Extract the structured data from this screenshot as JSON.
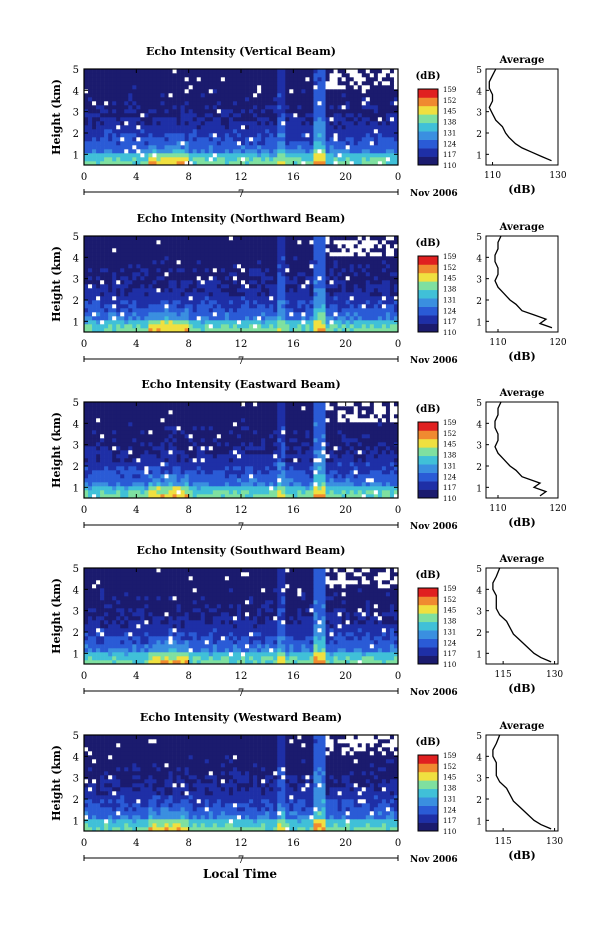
{
  "figure": {
    "xlabel": "Local Time",
    "date_label": "Nov 2006",
    "day_label": "7",
    "x_ticks": [
      "0",
      "4",
      "8",
      "12",
      "16",
      "20",
      "0"
    ],
    "y_ticks": [
      "1",
      "2",
      "3",
      "4",
      "5"
    ],
    "ylabel": "Height (km)"
  },
  "colorbar": {
    "unit_label": "(dB)",
    "labels": [
      "110",
      "117",
      "124",
      "131",
      "138",
      "145",
      "152",
      "159"
    ],
    "colors": [
      "#1b1b6e",
      "#1e2fa6",
      "#2a5bd6",
      "#3a8fe0",
      "#40c0d8",
      "#7fe0a0",
      "#f0e040",
      "#f08a30",
      "#e02020"
    ]
  },
  "chart_data": [
    {
      "type": "heatmap",
      "title": "Echo Intensity (Vertical Beam)",
      "xlabel": "Local Time",
      "ylabel": "Height (km)",
      "xlim": [
        0,
        24
      ],
      "ylim": [
        0.5,
        5
      ],
      "zlim": [
        110,
        159
      ],
      "zunit": "dB",
      "average_profile": {
        "title": "Average",
        "xlabel": "(dB)",
        "xticks": [
          "110",
          "130"
        ],
        "xlim": [
          108,
          130
        ],
        "yticks": [
          "1",
          "2",
          "3",
          "4",
          "5"
        ],
        "height_km": [
          0.7,
          0.9,
          1.1,
          1.3,
          1.5,
          1.8,
          2.0,
          2.3,
          2.6,
          2.9,
          3.2,
          3.5,
          3.8,
          4.1,
          4.4,
          4.7,
          5.0
        ],
        "value_db": [
          128,
          125,
          122,
          119,
          117,
          115,
          114,
          113,
          111,
          110,
          109,
          110,
          110,
          109,
          109,
          110,
          111
        ]
      }
    },
    {
      "type": "heatmap",
      "title": "Echo Intensity (Northward Beam)",
      "xlabel": "Local Time",
      "ylabel": "Height (km)",
      "xlim": [
        0,
        24
      ],
      "ylim": [
        0.5,
        5
      ],
      "zlim": [
        110,
        159
      ],
      "zunit": "dB",
      "average_profile": {
        "title": "Average",
        "xlabel": "(dB)",
        "xticks": [
          "110",
          "120"
        ],
        "xlim": [
          108,
          120
        ],
        "yticks": [
          "1",
          "2",
          "3",
          "4",
          "5"
        ],
        "height_km": [
          0.7,
          0.9,
          1.1,
          1.3,
          1.5,
          1.8,
          2.0,
          2.3,
          2.6,
          2.9,
          3.2,
          3.5,
          3.8,
          4.1,
          4.4,
          4.7,
          5.0
        ],
        "value_db": [
          119,
          117,
          118,
          116,
          114,
          113,
          112,
          111,
          110,
          109.5,
          110,
          110,
          109.5,
          109.5,
          110,
          110,
          110.5
        ]
      }
    },
    {
      "type": "heatmap",
      "title": "Echo Intensity (Eastward Beam)",
      "xlabel": "Local Time",
      "ylabel": "Height (km)",
      "xlim": [
        0,
        24
      ],
      "ylim": [
        0.5,
        5
      ],
      "zlim": [
        110,
        159
      ],
      "zunit": "dB",
      "average_profile": {
        "title": "Average",
        "xlabel": "(dB)",
        "xticks": [
          "110",
          "120"
        ],
        "xlim": [
          108,
          120
        ],
        "yticks": [
          "1",
          "2",
          "3",
          "4",
          "5"
        ],
        "height_km": [
          0.6,
          0.8,
          1.0,
          1.2,
          1.5,
          1.8,
          2.0,
          2.3,
          2.6,
          2.9,
          3.2,
          3.5,
          3.8,
          4.1,
          4.4,
          4.7,
          5.0
        ],
        "value_db": [
          117,
          118,
          116,
          117,
          114,
          113,
          112,
          111,
          110,
          109.5,
          110,
          110,
          109.5,
          109.5,
          110,
          110,
          110.5
        ]
      }
    },
    {
      "type": "heatmap",
      "title": "Echo Intensity (Southward Beam)",
      "xlabel": "Local Time",
      "ylabel": "Height (km)",
      "xlim": [
        0,
        24
      ],
      "ylim": [
        0.5,
        5
      ],
      "zlim": [
        110,
        159
      ],
      "zunit": "dB",
      "average_profile": {
        "title": "Average",
        "xlabel": "(dB)",
        "xticks": [
          "115",
          "130"
        ],
        "xlim": [
          110,
          131
        ],
        "yticks": [
          "1",
          "2",
          "3",
          "4",
          "5"
        ],
        "height_km": [
          0.6,
          0.8,
          1.0,
          1.3,
          1.6,
          1.9,
          2.2,
          2.5,
          2.8,
          3.1,
          3.4,
          3.7,
          4.0,
          4.3,
          4.6,
          5.0
        ],
        "value_db": [
          129,
          126,
          124,
          122,
          120,
          118,
          117,
          116,
          114,
          113,
          113,
          113,
          112,
          112,
          113,
          114
        ]
      }
    },
    {
      "type": "heatmap",
      "title": "Echo Intensity (Westward Beam)",
      "xlabel": "Local Time",
      "ylabel": "Height (km)",
      "xlim": [
        0,
        24
      ],
      "ylim": [
        0.5,
        5
      ],
      "zlim": [
        110,
        159
      ],
      "zunit": "dB",
      "average_profile": {
        "title": "Average",
        "xlabel": "(dB)",
        "xticks": [
          "115",
          "130"
        ],
        "xlim": [
          110,
          131
        ],
        "yticks": [
          "1",
          "2",
          "3",
          "4",
          "5"
        ],
        "height_km": [
          0.6,
          0.8,
          1.0,
          1.3,
          1.6,
          1.9,
          2.2,
          2.5,
          2.8,
          3.1,
          3.4,
          3.7,
          4.0,
          4.3,
          4.6,
          5.0
        ],
        "value_db": [
          129,
          126,
          124,
          122,
          120,
          118,
          117,
          116,
          114,
          113,
          113,
          113,
          112,
          112,
          113,
          114
        ]
      }
    }
  ]
}
